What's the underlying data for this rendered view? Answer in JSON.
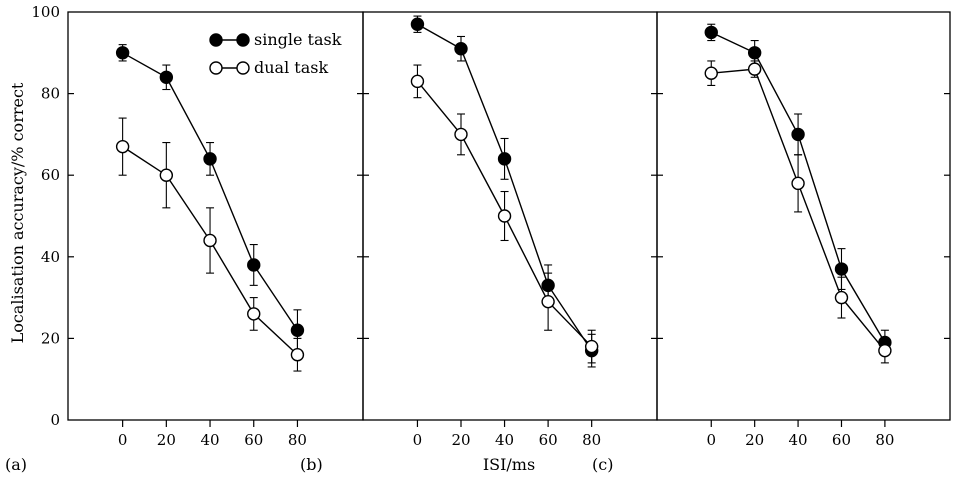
{
  "chart_data": [
    {
      "type": "line",
      "panel_label": "(a)",
      "x": [
        0,
        20,
        40,
        60,
        80
      ],
      "xlim": [
        -25,
        110
      ],
      "ylim": [
        0,
        100
      ],
      "yticks": [
        0,
        20,
        40,
        60,
        80,
        100
      ],
      "ylabel": "Localisation accuracy/% correct",
      "series": [
        {
          "name": "single task",
          "marker": "filled",
          "values": [
            90,
            84,
            64,
            38,
            22
          ],
          "errors": [
            2,
            3,
            4,
            5,
            5
          ]
        },
        {
          "name": "dual task",
          "marker": "open",
          "values": [
            67,
            60,
            44,
            26,
            16
          ],
          "errors": [
            7,
            8,
            8,
            4,
            4
          ]
        }
      ],
      "legend": "top-right"
    },
    {
      "type": "line",
      "panel_label": "(b)",
      "x": [
        0,
        20,
        40,
        60,
        80
      ],
      "xlim": [
        -25,
        110
      ],
      "ylim": [
        0,
        100
      ],
      "xlabel": "ISI/ms",
      "series": [
        {
          "name": "single task",
          "marker": "filled",
          "values": [
            97,
            91,
            64,
            33,
            17
          ],
          "errors": [
            2,
            3,
            5,
            5,
            4
          ]
        },
        {
          "name": "dual task",
          "marker": "open",
          "values": [
            83,
            70,
            50,
            29,
            18
          ],
          "errors": [
            4,
            5,
            6,
            7,
            4
          ]
        }
      ]
    },
    {
      "type": "line",
      "panel_label": "(c)",
      "x": [
        0,
        20,
        40,
        60,
        80
      ],
      "xlim": [
        -25,
        110
      ],
      "ylim": [
        0,
        100
      ],
      "series": [
        {
          "name": "single task",
          "marker": "filled",
          "values": [
            95,
            90,
            70,
            37,
            19
          ],
          "errors": [
            2,
            3,
            5,
            5,
            3
          ]
        },
        {
          "name": "dual task",
          "marker": "open",
          "values": [
            85,
            86,
            58,
            30,
            17
          ],
          "errors": [
            3,
            2,
            7,
            5,
            3
          ]
        }
      ]
    }
  ],
  "colors": {
    "line": "#000000",
    "background": "#ffffff"
  }
}
